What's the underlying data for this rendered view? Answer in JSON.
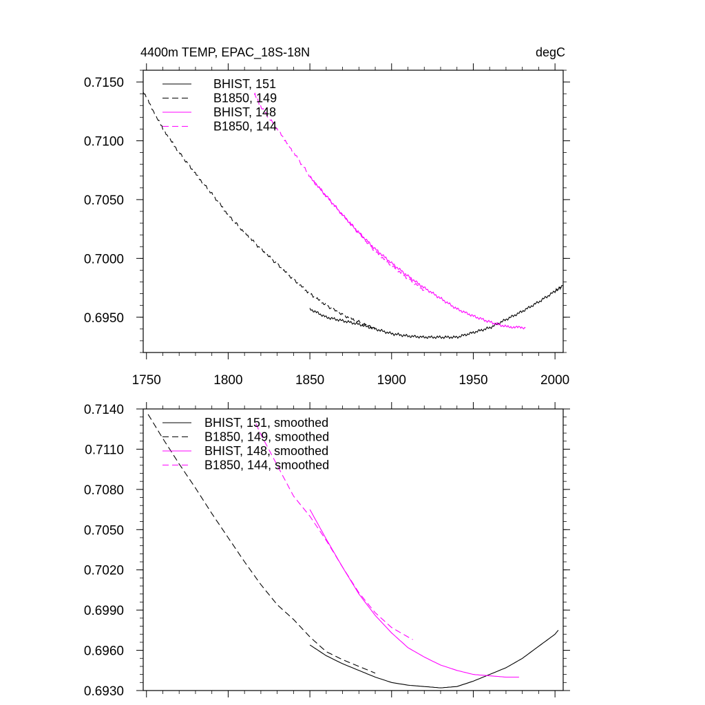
{
  "chart_data": [
    {
      "type": "line",
      "title": "4400m TEMP, EPAC_18S-18N",
      "units": "degC",
      "xlim": [
        1748,
        2005
      ],
      "ylim": [
        0.692,
        0.716
      ],
      "xticks": [
        1750,
        1800,
        1850,
        1900,
        1950,
        2000
      ],
      "xtick_labels": [
        "1750",
        "1800",
        "1850",
        "1900",
        "1950",
        "2000"
      ],
      "yticks": [
        0.695,
        0.7,
        0.705,
        0.71,
        0.715
      ],
      "ytick_labels": [
        "0.6950",
        "0.7000",
        "0.7050",
        "0.7100",
        "0.7150"
      ],
      "legend_position": "top-left",
      "series": [
        {
          "name": "BHIST, 151",
          "color": "#000000",
          "dash": "solid",
          "x": [
            1850,
            1860,
            1870,
            1880,
            1890,
            1900,
            1910,
            1920,
            1930,
            1940,
            1950,
            1960,
            1970,
            1980,
            1990,
            2000,
            2005
          ],
          "y": [
            0.6957,
            0.695,
            0.6947,
            0.6944,
            0.694,
            0.6936,
            0.6934,
            0.6933,
            0.6933,
            0.6933,
            0.6937,
            0.6941,
            0.6948,
            0.6955,
            0.6963,
            0.6972,
            0.6977
          ]
        },
        {
          "name": "B1850, 149",
          "color": "#000000",
          "dash": "dashed",
          "x": [
            1748,
            1760,
            1770,
            1780,
            1790,
            1800,
            1810,
            1820,
            1830,
            1840,
            1850,
            1860,
            1870,
            1880,
            1890
          ],
          "y": [
            0.7142,
            0.711,
            0.709,
            0.7072,
            0.7055,
            0.7037,
            0.7022,
            0.7008,
            0.6995,
            0.6982,
            0.697,
            0.696,
            0.6952,
            0.6946,
            0.6941
          ]
        },
        {
          "name": "BHIST, 148",
          "color": "#ff00ff",
          "dash": "solid",
          "x": [
            1850,
            1860,
            1870,
            1880,
            1890,
            1900,
            1910,
            1920,
            1930,
            1940,
            1950,
            1960,
            1970,
            1982
          ],
          "y": [
            0.7069,
            0.7053,
            0.7037,
            0.7022,
            0.7008,
            0.6996,
            0.6985,
            0.6975,
            0.6966,
            0.6957,
            0.6951,
            0.6946,
            0.6942,
            0.6941
          ]
        },
        {
          "name": "B1850, 144",
          "color": "#ff00ff",
          "dash": "dashed",
          "x": [
            1816,
            1820,
            1830,
            1840,
            1850,
            1860,
            1870,
            1880,
            1890,
            1900,
            1910,
            1920
          ],
          "y": [
            0.714,
            0.7129,
            0.711,
            0.709,
            0.707,
            0.7053,
            0.7037,
            0.7021,
            0.7006,
            0.6994,
            0.6983,
            0.6973
          ]
        }
      ]
    },
    {
      "type": "line",
      "title": "",
      "xlim": [
        1748,
        2005
      ],
      "ylim": [
        0.693,
        0.714
      ],
      "xticks": [
        1750,
        1800,
        1850,
        1900,
        1950,
        2000
      ],
      "yticks": [
        0.693,
        0.696,
        0.699,
        0.702,
        0.705,
        0.708,
        0.711,
        0.714
      ],
      "ytick_labels": [
        "0.6930",
        "0.6960",
        "0.6990",
        "0.7020",
        "0.7050",
        "0.7080",
        "0.7110",
        "0.7140"
      ],
      "legend_position": "top-left",
      "series": [
        {
          "name": "BHIST, 151, smoothed",
          "color": "#000000",
          "dash": "solid",
          "x": [
            1850,
            1860,
            1870,
            1880,
            1890,
            1900,
            1910,
            1920,
            1930,
            1940,
            1950,
            1960,
            1970,
            1980,
            1990,
            2000,
            2002
          ],
          "y": [
            0.6964,
            0.6956,
            0.695,
            0.6945,
            0.694,
            0.6936,
            0.6934,
            0.6933,
            0.6932,
            0.6933,
            0.6937,
            0.6942,
            0.6947,
            0.6954,
            0.6963,
            0.6972,
            0.6975
          ]
        },
        {
          "name": "B1850, 149, smoothed",
          "color": "#000000",
          "dash": "dashed",
          "x": [
            1751,
            1760,
            1770,
            1780,
            1790,
            1800,
            1810,
            1820,
            1830,
            1840,
            1850,
            1860,
            1870,
            1880,
            1890
          ],
          "y": [
            0.7136,
            0.7118,
            0.7099,
            0.7081,
            0.7062,
            0.7044,
            0.7026,
            0.7009,
            0.6994,
            0.6983,
            0.697,
            0.6959,
            0.6953,
            0.6948,
            0.6943
          ]
        },
        {
          "name": "BHIST, 148, smoothed",
          "color": "#ff00ff",
          "dash": "solid",
          "x": [
            1850,
            1860,
            1870,
            1880,
            1890,
            1900,
            1910,
            1920,
            1930,
            1940,
            1950,
            1960,
            1970,
            1978
          ],
          "y": [
            0.7065,
            0.7043,
            0.7022,
            0.7002,
            0.6986,
            0.6973,
            0.6962,
            0.6955,
            0.6949,
            0.6945,
            0.6942,
            0.6941,
            0.694,
            0.694
          ]
        },
        {
          "name": "B1850, 144, smoothed",
          "color": "#ff00ff",
          "dash": "dashed",
          "x": [
            1817,
            1820,
            1830,
            1840,
            1850,
            1860,
            1870,
            1880,
            1890,
            1900,
            1910,
            1913
          ],
          "y": [
            0.7129,
            0.7121,
            0.7098,
            0.7075,
            0.706,
            0.7042,
            0.7022,
            0.7003,
            0.6988,
            0.6977,
            0.697,
            0.6968
          ]
        }
      ]
    }
  ]
}
